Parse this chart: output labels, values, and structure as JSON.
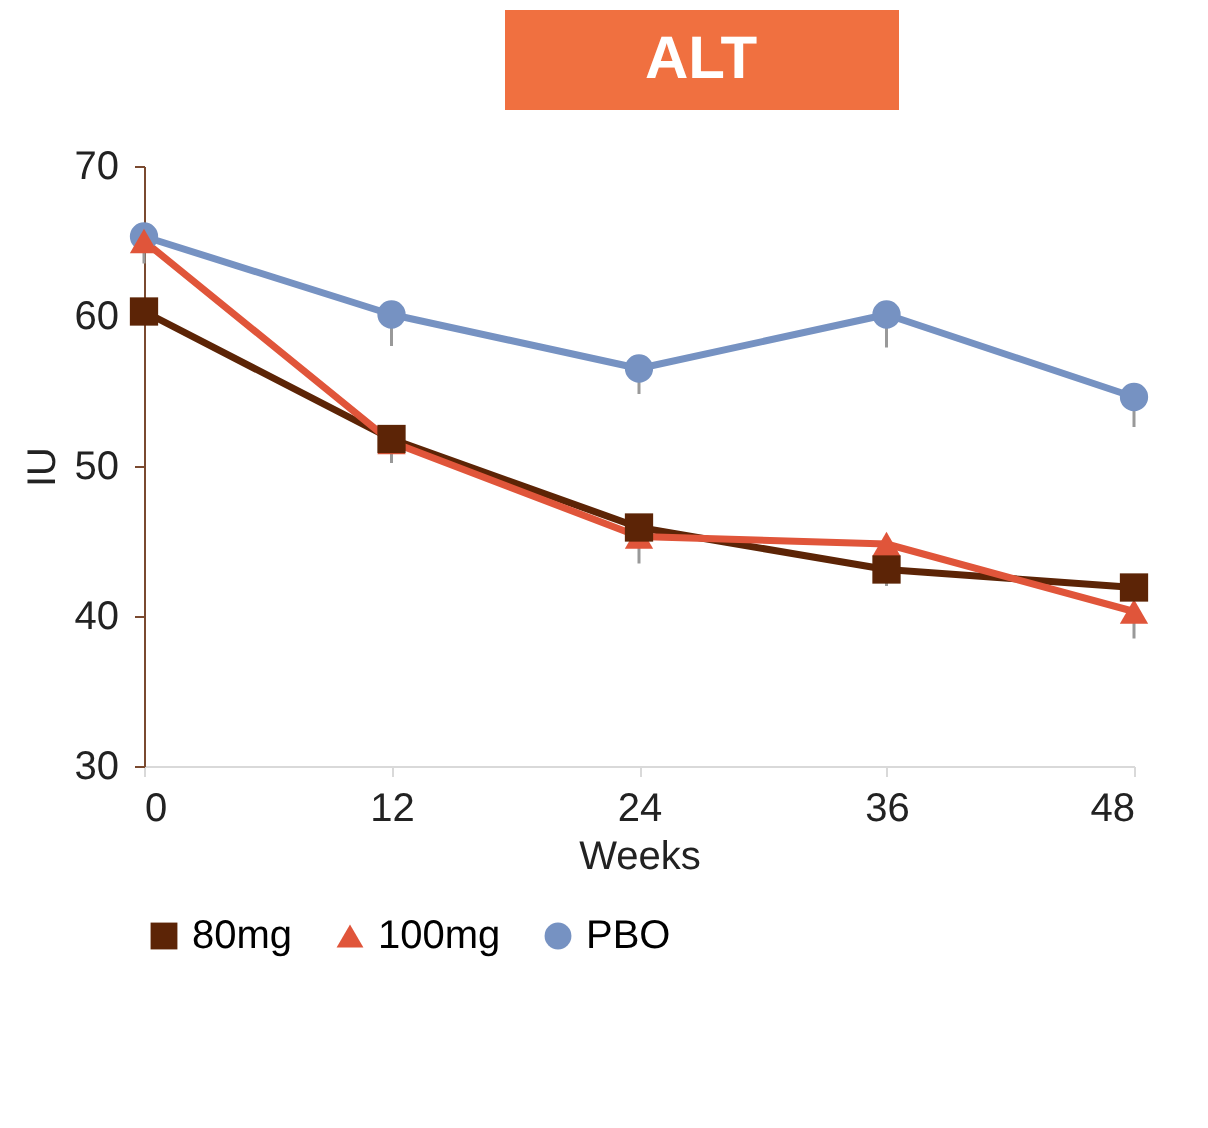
{
  "chart_data": {
    "type": "line",
    "title": "ALT",
    "xlabel": "Weeks",
    "ylabel": "IU",
    "x": [
      0,
      12,
      24,
      36,
      48
    ],
    "xlim": [
      0,
      48
    ],
    "xticks": [
      0,
      12,
      24,
      36,
      48
    ],
    "ylim": [
      30,
      70
    ],
    "yticks": [
      30,
      40,
      50,
      60,
      70
    ],
    "grid": false,
    "legend": "bottom",
    "line_style": "solid",
    "series": [
      {
        "name": "80mg",
        "color": "#5c2406",
        "marker": "square",
        "values": [
          60.3,
          51.8,
          45.9,
          43.1,
          41.9
        ],
        "errors": [
          null,
          [
            50.2,
            51.8
          ],
          null,
          [
            42.0,
            43.1
          ],
          null
        ]
      },
      {
        "name": "100mg",
        "color": "#e0553a",
        "marker": "triangle",
        "values": [
          65.0,
          51.6,
          45.3,
          44.8,
          40.3
        ],
        "errors": [
          null,
          null,
          [
            43.5,
            45.3
          ],
          null,
          [
            38.5,
            40.3
          ]
        ]
      },
      {
        "name": "PBO",
        "color": "#7692c2",
        "marker": "circle",
        "values": [
          65.3,
          60.1,
          56.5,
          60.1,
          54.6
        ],
        "errors": [
          [
            63.5,
            65.3
          ],
          [
            58.0,
            60.1
          ],
          [
            54.8,
            56.5
          ],
          [
            57.9,
            60.1
          ],
          [
            52.6,
            54.6
          ]
        ]
      }
    ]
  }
}
